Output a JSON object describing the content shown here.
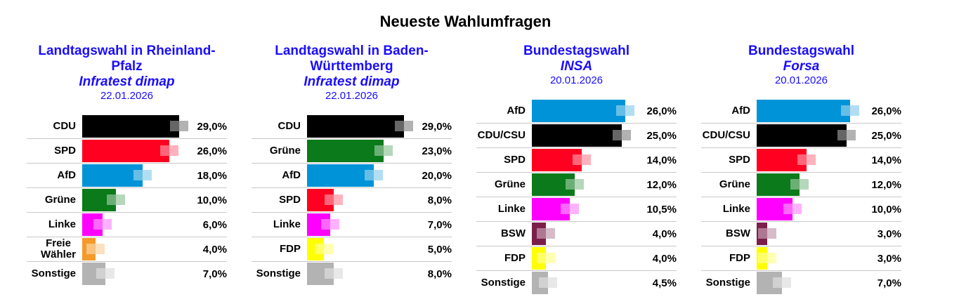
{
  "title": "Neueste Wahlumfragen",
  "chart_data": [
    {
      "type": "bar",
      "title": "Landtagswahl in Rheinland-Pfalz",
      "institute": "Infratest dimap",
      "date": "22.01.2026",
      "categories": [
        "CDU",
        "SPD",
        "AfD",
        "Grüne",
        "Linke",
        "Freie Wähler",
        "Sonstige"
      ],
      "values": [
        29.0,
        26.0,
        18.0,
        10.0,
        6.0,
        4.0,
        7.0
      ],
      "labels": [
        "29,0%",
        "26,0%",
        "18,0%",
        "10,0%",
        "6,0%",
        "4,0%",
        "7,0%"
      ],
      "colors": [
        "#000000",
        "#ff0021",
        "#0093d8",
        "#0a7a1a",
        "#ff00ff",
        "#f39a2a",
        "#b3b3b3"
      ]
    },
    {
      "type": "bar",
      "title": "Landtagswahl in Baden-Württemberg",
      "institute": "Infratest dimap",
      "date": "22.01.2026",
      "categories": [
        "CDU",
        "Grüne",
        "AfD",
        "SPD",
        "Linke",
        "FDP",
        "Sonstige"
      ],
      "values": [
        29.0,
        23.0,
        20.0,
        8.0,
        7.0,
        5.0,
        8.0
      ],
      "labels": [
        "29,0%",
        "23,0%",
        "20,0%",
        "8,0%",
        "7,0%",
        "5,0%",
        "8,0%"
      ],
      "colors": [
        "#000000",
        "#0a7a1a",
        "#0093d8",
        "#ff0021",
        "#ff00ff",
        "#ffff00",
        "#b3b3b3"
      ]
    },
    {
      "type": "bar",
      "title": "Bundestagswahl",
      "institute": "INSA",
      "date": "20.01.2026",
      "categories": [
        "AfD",
        "CDU/CSU",
        "SPD",
        "Grüne",
        "Linke",
        "BSW",
        "FDP",
        "Sonstige"
      ],
      "values": [
        26.0,
        25.0,
        14.0,
        12.0,
        10.5,
        4.0,
        4.0,
        4.5
      ],
      "labels": [
        "26,0%",
        "25,0%",
        "14,0%",
        "12,0%",
        "10,5%",
        "4,0%",
        "4,0%",
        "4,5%"
      ],
      "colors": [
        "#0093d8",
        "#000000",
        "#ff0021",
        "#0a7a1a",
        "#ff00ff",
        "#7b1f4a",
        "#ffff00",
        "#b3b3b3"
      ]
    },
    {
      "type": "bar",
      "title": "Bundestagswahl",
      "institute": "Forsa",
      "date": "20.01.2026",
      "categories": [
        "AfD",
        "CDU/CSU",
        "SPD",
        "Grüne",
        "Linke",
        "BSW",
        "FDP",
        "Sonstige"
      ],
      "values": [
        26.0,
        25.0,
        14.0,
        12.0,
        10.0,
        3.0,
        3.0,
        7.0
      ],
      "labels": [
        "26,0%",
        "25,0%",
        "14,0%",
        "12,0%",
        "10,0%",
        "3,0%",
        "3,0%",
        "7,0%"
      ],
      "colors": [
        "#0093d8",
        "#000000",
        "#ff0021",
        "#0a7a1a",
        "#ff00ff",
        "#7b1f4a",
        "#ffff00",
        "#b3b3b3"
      ]
    }
  ]
}
